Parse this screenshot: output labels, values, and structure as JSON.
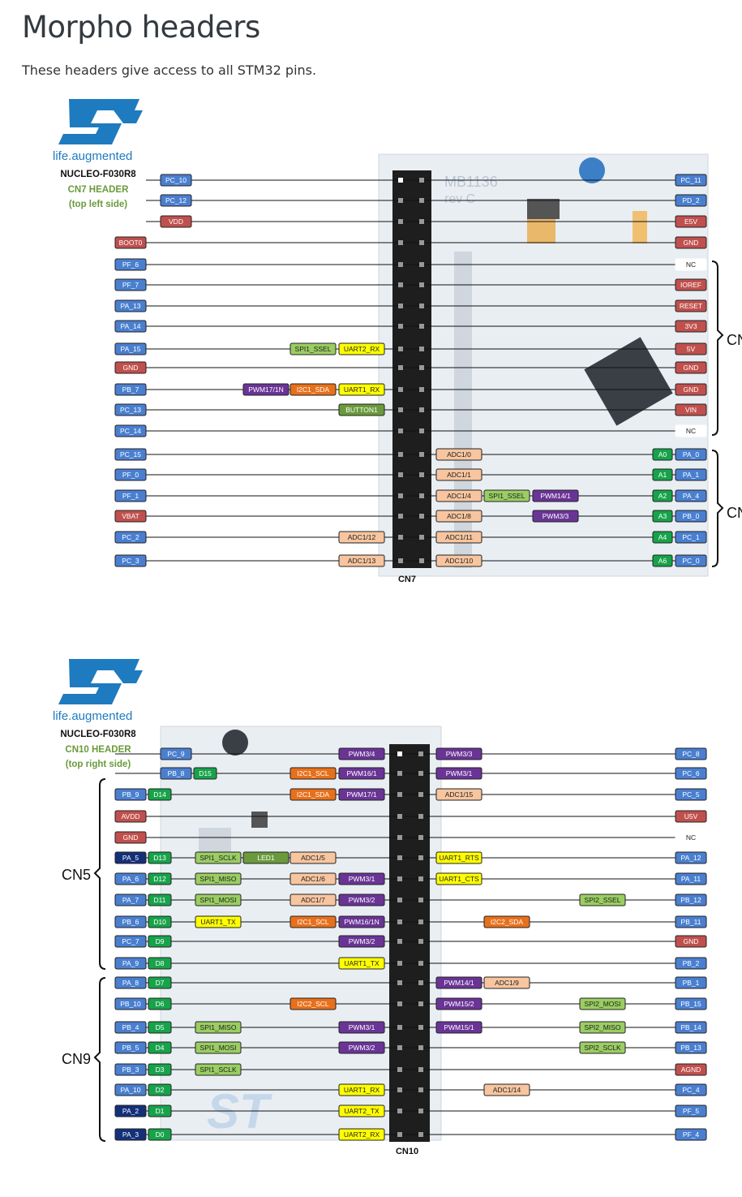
{
  "page": {
    "title": "Morpho headers",
    "subtitle": "These headers give access to all STM32 pins."
  },
  "colors": {
    "blue": "#4a7fd0",
    "red": "#c0504d",
    "navy": "#14307a",
    "dgreen": "#17a34a",
    "lgreen": "#9acd62",
    "olive": "#6a9a3c",
    "purple": "#6a3496",
    "orange": "#e8701b",
    "peach": "#f7c59f",
    "yellow": "#ffff00",
    "white": "#ffffff",
    "st_logo": "#1f7bbf",
    "header_green": "#6a9a3c"
  },
  "fig1": {
    "logo_text": "life.augmented",
    "board": "NUCLEO-F030R8",
    "header_title": "CN7 HEADER",
    "header_side": "(top left side)",
    "connector_label": "CN7",
    "silk": "MB1136",
    "silk2": "rev C",
    "brackets": [
      "CN",
      "CN"
    ],
    "rows": [
      {
        "y": 112,
        "left": [
          [
            "PC_10",
            "blue"
          ]
        ],
        "right": [
          [
            "PC_11",
            "blue"
          ]
        ]
      },
      {
        "y": 137,
        "left": [
          [
            "PC_12",
            "blue"
          ]
        ],
        "right": [
          [
            "PD_2",
            "blue"
          ]
        ]
      },
      {
        "y": 163,
        "left": [
          [
            "VDD",
            "red"
          ]
        ],
        "right": [
          [
            "E5V",
            "red"
          ]
        ]
      },
      {
        "y": 189,
        "left": [
          [
            "BOOT0",
            "red"
          ]
        ],
        "right": [
          [
            "GND",
            "red"
          ]
        ]
      },
      {
        "y": 216,
        "left": [
          [
            "PF_6",
            "blue"
          ]
        ],
        "right": [
          [
            "NC",
            "white"
          ]
        ]
      },
      {
        "y": 241,
        "left": [
          [
            "PF_7",
            "blue"
          ]
        ],
        "right": [
          [
            "IOREF",
            "red"
          ]
        ]
      },
      {
        "y": 267,
        "left": [
          [
            "PA_13",
            "blue"
          ]
        ],
        "right": [
          [
            "RESET",
            "red"
          ]
        ]
      },
      {
        "y": 292,
        "left": [
          [
            "PA_14",
            "blue"
          ]
        ],
        "right": [
          [
            "3V3",
            "red"
          ]
        ]
      },
      {
        "y": 320,
        "left": [
          [
            "PA_15",
            "blue"
          ],
          [
            "SPI1_SSEL",
            "lgreen"
          ],
          [
            "UART2_RX",
            "yellow"
          ]
        ],
        "right": [
          [
            "5V",
            "red"
          ]
        ]
      },
      {
        "y": 343,
        "left": [
          [
            "GND",
            "red"
          ]
        ],
        "right": [
          [
            "GND",
            "red"
          ]
        ]
      },
      {
        "y": 370,
        "left": [
          [
            "PB_7",
            "blue"
          ],
          [
            "PWM17/1N",
            "purple"
          ],
          [
            "I2C1_SDA",
            "orange"
          ],
          [
            "UART1_RX",
            "yellow"
          ]
        ],
        "right": [
          [
            "GND",
            "red"
          ]
        ]
      },
      {
        "y": 395,
        "left": [
          [
            "PC_13",
            "blue"
          ],
          [
            "BUTTON1",
            "olive"
          ]
        ],
        "right": [
          [
            "VIN",
            "red"
          ]
        ]
      },
      {
        "y": 421,
        "left": [
          [
            "PC_14",
            "blue"
          ]
        ],
        "right": [
          [
            "NC",
            "white"
          ]
        ]
      },
      {
        "y": 450,
        "left": [
          [
            "PC_15",
            "blue"
          ]
        ],
        "right": [
          [
            "ADC1/0",
            "peach"
          ],
          [
            "A0",
            "dgreen"
          ],
          [
            "PA_0",
            "blue"
          ]
        ]
      },
      {
        "y": 475,
        "left": [
          [
            "PF_0",
            "blue"
          ]
        ],
        "right": [
          [
            "ADC1/1",
            "peach"
          ],
          [
            "A1",
            "dgreen"
          ],
          [
            "PA_1",
            "blue"
          ]
        ]
      },
      {
        "y": 501,
        "left": [
          [
            "PF_1",
            "blue"
          ]
        ],
        "right": [
          [
            "ADC1/4",
            "peach"
          ],
          [
            "SPI1_SSEL",
            "lgreen"
          ],
          [
            "PWM14/1",
            "purple"
          ],
          [
            "A2",
            "dgreen"
          ],
          [
            "PA_4",
            "blue"
          ]
        ]
      },
      {
        "y": 526,
        "left": [
          [
            "VBAT",
            "red"
          ]
        ],
        "right": [
          [
            "ADC1/8",
            "peach"
          ],
          [
            "PWM3/3",
            "purple"
          ],
          [
            "A3",
            "dgreen"
          ],
          [
            "PB_0",
            "blue"
          ]
        ]
      },
      {
        "y": 552,
        "left": [
          [
            "PC_2",
            "blue"
          ],
          [
            "ADC1/12",
            "peach"
          ]
        ],
        "right": [
          [
            "ADC1/11",
            "peach"
          ],
          [
            "A4",
            "dgreen"
          ],
          [
            "PC_1",
            "blue"
          ]
        ]
      },
      {
        "y": 581,
        "left": [
          [
            "PC_3",
            "blue"
          ],
          [
            "ADC1/13",
            "peach"
          ]
        ],
        "right": [
          [
            "ADC1/10",
            "peach"
          ],
          [
            "A6",
            "dgreen"
          ],
          [
            "PC_0",
            "blue"
          ]
        ]
      }
    ]
  },
  "fig2": {
    "logo_text": "life.augmented",
    "board": "NUCLEO-F030R8",
    "header_title": "CN10 HEADER",
    "header_side": "(top right side)",
    "connector_label": "CN10",
    "brackets": [
      "CN5",
      "CN9"
    ],
    "rows": [
      {
        "y": 129,
        "left": [
          [
            "PC_9",
            "blue"
          ],
          [
            "PWM3/4",
            "purple"
          ]
        ],
        "right": [
          [
            "PWM3/3",
            "purple"
          ],
          [
            "PC_8",
            "blue"
          ]
        ]
      },
      {
        "y": 153,
        "left": [
          [
            "PB_8",
            "blue"
          ],
          [
            "D15",
            "dgreen"
          ],
          [
            "I2C1_SCL",
            "orange"
          ],
          [
            "PWM16/1",
            "purple"
          ]
        ],
        "right": [
          [
            "PWM3/1",
            "purple"
          ],
          [
            "PC_6",
            "blue"
          ]
        ]
      },
      {
        "y": 179,
        "left": [
          [
            "PB_9",
            "blue"
          ],
          [
            "D14",
            "dgreen"
          ],
          [
            "I2C1_SDA",
            "orange"
          ],
          [
            "PWM17/1",
            "purple"
          ]
        ],
        "right": [
          [
            "ADC1/15",
            "peach"
          ],
          [
            "PC_5",
            "blue"
          ]
        ]
      },
      {
        "y": 206,
        "left": [
          [
            "AVDD",
            "red"
          ]
        ],
        "right": [
          [
            "U5V",
            "red"
          ]
        ]
      },
      {
        "y": 232,
        "left": [
          [
            "GND",
            "red"
          ]
        ],
        "right": [
          [
            "NC",
            "white"
          ]
        ]
      },
      {
        "y": 257,
        "left": [
          [
            "PA_5",
            "navy"
          ],
          [
            "D13",
            "dgreen"
          ],
          [
            "SPI1_SCLK",
            "lgreen"
          ],
          [
            "LED1",
            "olive"
          ],
          [
            "ADC1/5",
            "peach"
          ]
        ],
        "right": [
          [
            "UART1_RTS",
            "yellow"
          ],
          [
            "PA_12",
            "blue"
          ]
        ]
      },
      {
        "y": 283,
        "left": [
          [
            "PA_6",
            "blue"
          ],
          [
            "D12",
            "dgreen"
          ],
          [
            "SPI1_MISO",
            "lgreen"
          ],
          [
            "ADC1/6",
            "peach"
          ],
          [
            "PWM3/1",
            "purple"
          ]
        ],
        "right": [
          [
            "UART1_CTS",
            "yellow"
          ],
          [
            "PA_11",
            "blue"
          ]
        ]
      },
      {
        "y": 309,
        "left": [
          [
            "PA_7",
            "blue"
          ],
          [
            "D11",
            "dgreen"
          ],
          [
            "SPI1_MOSI",
            "lgreen"
          ],
          [
            "ADC1/7",
            "peach"
          ],
          [
            "PWM3/2",
            "purple"
          ]
        ],
        "right": [
          [
            "SPI2_SSEL",
            "lgreen"
          ],
          [
            "PB_12",
            "blue"
          ]
        ]
      },
      {
        "y": 336,
        "left": [
          [
            "PB_6",
            "blue"
          ],
          [
            "D10",
            "dgreen"
          ],
          [
            "UART1_TX",
            "yellow"
          ],
          [
            "I2C1_SCL",
            "orange"
          ],
          [
            "PWM16/1N",
            "purple"
          ]
        ],
        "right": [
          [
            "I2C2_SDA",
            "orange"
          ],
          [
            "PB_11",
            "blue"
          ]
        ]
      },
      {
        "y": 360,
        "left": [
          [
            "PC_7",
            "blue"
          ],
          [
            "D9",
            "dgreen"
          ],
          [
            "PWM3/2",
            "purple"
          ]
        ],
        "right": [
          [
            "GND",
            "red"
          ]
        ]
      },
      {
        "y": 387,
        "left": [
          [
            "PA_9",
            "blue"
          ],
          [
            "D8",
            "dgreen"
          ],
          [
            "UART1_TX",
            "yellow"
          ]
        ],
        "right": [
          [
            "PB_2",
            "blue"
          ]
        ]
      },
      {
        "y": 411,
        "left": [
          [
            "PA_8",
            "blue"
          ],
          [
            "D7",
            "dgreen"
          ]
        ],
        "right": [
          [
            "PWM14/1",
            "purple"
          ],
          [
            "ADC1/9",
            "peach"
          ],
          [
            "PB_1",
            "blue"
          ]
        ]
      },
      {
        "y": 437,
        "left": [
          [
            "PB_10",
            "blue"
          ],
          [
            "D6",
            "dgreen"
          ],
          [
            "I2C2_SCL",
            "orange"
          ]
        ],
        "right": [
          [
            "PWM15/2",
            "purple"
          ],
          [
            "SPI2_MOSI",
            "lgreen"
          ],
          [
            "PB_15",
            "blue"
          ]
        ]
      },
      {
        "y": 466,
        "left": [
          [
            "PB_4",
            "blue"
          ],
          [
            "D5",
            "dgreen"
          ],
          [
            "SPI1_MISO",
            "lgreen"
          ],
          [
            "PWM3/1",
            "purple"
          ]
        ],
        "right": [
          [
            "PWM15/1",
            "purple"
          ],
          [
            "SPI2_MISO",
            "lgreen"
          ],
          [
            "PB_14",
            "blue"
          ]
        ]
      },
      {
        "y": 491,
        "left": [
          [
            "PB_5",
            "blue"
          ],
          [
            "D4",
            "dgreen"
          ],
          [
            "SPI1_MOSI",
            "lgreen"
          ],
          [
            "PWM3/2",
            "purple"
          ]
        ],
        "right": [
          [
            "SPI2_SCLK",
            "lgreen"
          ],
          [
            "PB_13",
            "blue"
          ]
        ]
      },
      {
        "y": 518,
        "left": [
          [
            "PB_3",
            "blue"
          ],
          [
            "D3",
            "dgreen"
          ],
          [
            "SPI1_SCLK",
            "lgreen"
          ]
        ],
        "right": [
          [
            "AGND",
            "red"
          ]
        ]
      },
      {
        "y": 543,
        "left": [
          [
            "PA_10",
            "blue"
          ],
          [
            "D2",
            "dgreen"
          ],
          [
            "UART1_RX",
            "yellow"
          ]
        ],
        "right": [
          [
            "ADC1/14",
            "peach"
          ],
          [
            "PC_4",
            "blue"
          ]
        ]
      },
      {
        "y": 569,
        "left": [
          [
            "PA_2",
            "navy"
          ],
          [
            "D1",
            "dgreen"
          ],
          [
            "UART2_TX",
            "yellow"
          ]
        ],
        "right": [
          [
            "PF_5",
            "blue"
          ]
        ]
      },
      {
        "y": 598,
        "left": [
          [
            "PA_3",
            "navy"
          ],
          [
            "D0",
            "dgreen"
          ],
          [
            "UART2_RX",
            "yellow"
          ]
        ],
        "right": [
          [
            "PF_4",
            "blue"
          ]
        ]
      }
    ]
  }
}
